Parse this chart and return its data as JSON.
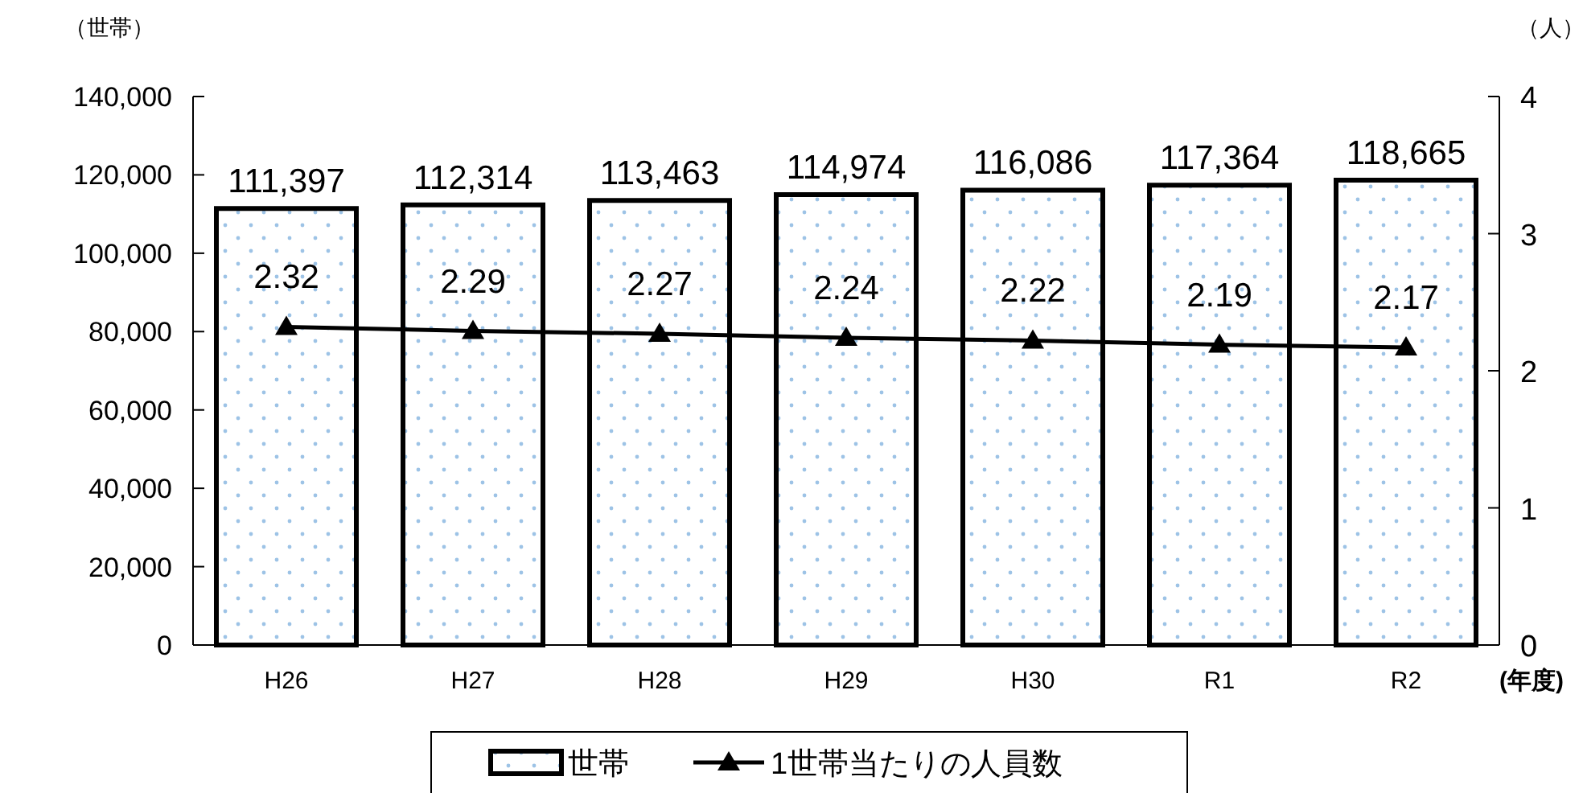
{
  "chart_data": {
    "type": "bar",
    "ylabel": "（世帯）",
    "y2label": "（人）",
    "xlabel": "(年度)",
    "categories": [
      "H26",
      "H27",
      "H28",
      "H29",
      "H30",
      "R1",
      "R2"
    ],
    "series": [
      {
        "name": "世帯",
        "color": "#9dc3e6",
        "values": [
          111397,
          112314,
          113463,
          114974,
          116086,
          117364,
          118665
        ],
        "value_labels": [
          "111,397",
          "112,314",
          "113,463",
          "114,974",
          "116,086",
          "117,364",
          "118,665"
        ]
      },
      {
        "name": "1世帯当たりの人員数",
        "type": "line",
        "axis": "y2",
        "color": "#000000",
        "marker": "triangle",
        "values": [
          2.32,
          2.29,
          2.27,
          2.24,
          2.22,
          2.19,
          2.17
        ],
        "value_labels": [
          "2.32",
          "2.29",
          "2.27",
          "2.24",
          "2.22",
          "2.19",
          "2.17"
        ]
      }
    ],
    "ylim": [
      0,
      140000
    ],
    "yticks": [
      0,
      {
        "value": 20000,
        "label": "20,000"
      },
      {
        "value": 40000,
        "label": "40,000"
      },
      {
        "value": 60000,
        "label": "60,000"
      },
      {
        "value": 80000,
        "label": "80,000"
      },
      {
        "value": 100000,
        "label": "100,000"
      },
      {
        "value": 120000,
        "label": "120,000"
      },
      {
        "value": 140000,
        "label": "140,000"
      }
    ],
    "y2lim": [
      0,
      4
    ],
    "y2ticks": [
      0,
      1,
      2,
      3,
      4
    ],
    "grid": false,
    "legend": "bottom"
  }
}
